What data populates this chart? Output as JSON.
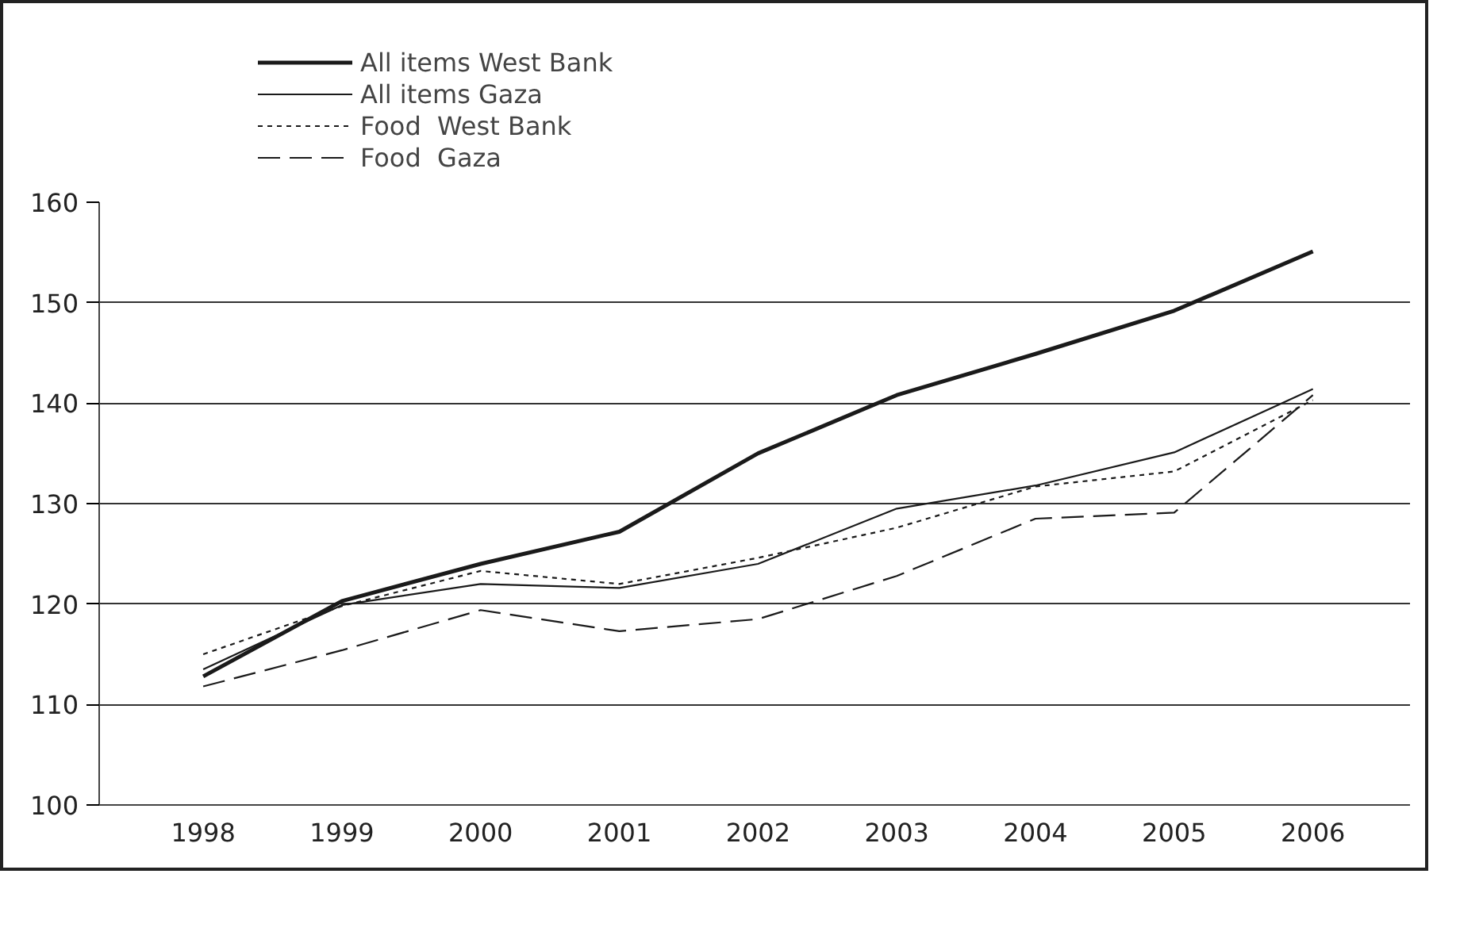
{
  "chart_data": {
    "type": "line",
    "categories": [
      "1998",
      "1999",
      "2000",
      "2001",
      "2002",
      "2003",
      "2004",
      "2005",
      "2006"
    ],
    "series": [
      {
        "name": "All items West Bank",
        "color": "#1a1a1a",
        "line_style": "solid",
        "values": [
          112.8,
          120.3,
          124.0,
          127.2,
          135.0,
          140.8,
          144.9,
          149.2,
          155.1
        ]
      },
      {
        "name": "All items Gaza",
        "color": "#1a1a1a",
        "line_style": "solid",
        "values": [
          113.5,
          119.9,
          122.0,
          121.6,
          124.0,
          129.5,
          131.8,
          135.1,
          141.4
        ]
      },
      {
        "name": "Food  West Bank",
        "color": "#1a1a1a",
        "line_style": "dotted",
        "values": [
          115.0,
          119.8,
          123.3,
          122.0,
          124.6,
          127.6,
          131.7,
          133.2,
          140.3
        ]
      },
      {
        "name": "Food  Gaza",
        "color": "#1a1a1a",
        "line_style": "dashed",
        "values": [
          111.8,
          115.4,
          119.4,
          117.3,
          118.5,
          122.8,
          128.5,
          129.1,
          140.8
        ]
      }
    ],
    "ylim": [
      100,
      160
    ],
    "yticks": [
      100,
      110,
      120,
      130,
      140,
      150,
      160
    ],
    "grid": "y",
    "legend": "top left",
    "marker": "none"
  }
}
